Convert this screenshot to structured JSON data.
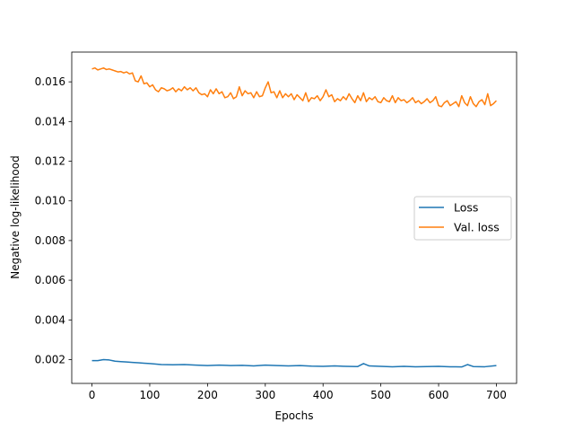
{
  "chart_data": {
    "type": "line",
    "title": "",
    "xlabel": "Epochs",
    "ylabel": "Negative log-likelihood",
    "xlim": [
      -35,
      735
    ],
    "ylim": [
      0.0008,
      0.0175
    ],
    "xticks": [
      0,
      100,
      200,
      300,
      400,
      500,
      600,
      700
    ],
    "xtick_labels": [
      "0",
      "100",
      "200",
      "300",
      "400",
      "500",
      "600",
      "700"
    ],
    "yticks": [
      0.002,
      0.004,
      0.006,
      0.008,
      0.01,
      0.012,
      0.014,
      0.016
    ],
    "ytick_labels": [
      "0.002",
      "0.004",
      "0.006",
      "0.008",
      "0.010",
      "0.012",
      "0.014",
      "0.016"
    ],
    "grid": false,
    "legend_position": "center-right",
    "series": [
      {
        "name": "Loss",
        "color": "#1f77b4",
        "x": [
          0,
          10,
          20,
          30,
          40,
          50,
          60,
          70,
          80,
          90,
          100,
          120,
          140,
          160,
          180,
          200,
          220,
          240,
          260,
          280,
          300,
          320,
          340,
          360,
          380,
          400,
          420,
          440,
          460,
          470,
          480,
          500,
          520,
          540,
          560,
          580,
          600,
          620,
          640,
          650,
          660,
          680,
          700
        ],
        "y": [
          0.00195,
          0.00195,
          0.002,
          0.00198,
          0.00192,
          0.0019,
          0.00188,
          0.00186,
          0.00184,
          0.00182,
          0.0018,
          0.00175,
          0.00174,
          0.00175,
          0.00172,
          0.0017,
          0.00172,
          0.0017,
          0.00171,
          0.00168,
          0.00172,
          0.0017,
          0.00168,
          0.0017,
          0.00167,
          0.00166,
          0.00168,
          0.00166,
          0.00165,
          0.0018,
          0.00168,
          0.00166,
          0.00164,
          0.00166,
          0.00164,
          0.00165,
          0.00166,
          0.00164,
          0.00163,
          0.00175,
          0.00165,
          0.00164,
          0.0017
        ]
      },
      {
        "name": "Val. loss",
        "color": "#ff7f0e",
        "x": [
          0,
          5,
          10,
          15,
          20,
          25,
          30,
          35,
          40,
          45,
          50,
          55,
          60,
          65,
          70,
          75,
          80,
          85,
          90,
          95,
          100,
          105,
          110,
          115,
          120,
          125,
          130,
          135,
          140,
          145,
          150,
          155,
          160,
          165,
          170,
          175,
          180,
          185,
          190,
          195,
          200,
          205,
          210,
          215,
          220,
          225,
          230,
          235,
          240,
          245,
          250,
          255,
          260,
          265,
          270,
          275,
          280,
          285,
          290,
          295,
          300,
          305,
          310,
          315,
          320,
          325,
          330,
          335,
          340,
          345,
          350,
          355,
          360,
          365,
          370,
          375,
          380,
          385,
          390,
          395,
          400,
          405,
          410,
          415,
          420,
          425,
          430,
          435,
          440,
          445,
          450,
          455,
          460,
          465,
          470,
          475,
          480,
          485,
          490,
          495,
          500,
          505,
          510,
          515,
          520,
          525,
          530,
          535,
          540,
          545,
          550,
          555,
          560,
          565,
          570,
          575,
          580,
          585,
          590,
          595,
          600,
          605,
          610,
          615,
          620,
          625,
          630,
          635,
          640,
          645,
          650,
          655,
          660,
          665,
          670,
          675,
          680,
          685,
          690,
          695,
          700
        ],
        "y": [
          0.01665,
          0.0167,
          0.0166,
          0.01665,
          0.0167,
          0.01662,
          0.01665,
          0.0166,
          0.01655,
          0.0165,
          0.01652,
          0.01645,
          0.0165,
          0.0164,
          0.01645,
          0.01605,
          0.016,
          0.0163,
          0.0159,
          0.01595,
          0.01575,
          0.01585,
          0.0156,
          0.0155,
          0.0157,
          0.01565,
          0.01555,
          0.0156,
          0.0157,
          0.0155,
          0.01565,
          0.01555,
          0.01575,
          0.0156,
          0.0157,
          0.01555,
          0.0157,
          0.01545,
          0.01535,
          0.0154,
          0.01525,
          0.0156,
          0.0154,
          0.01565,
          0.0154,
          0.0155,
          0.0152,
          0.01525,
          0.01545,
          0.01515,
          0.01525,
          0.01575,
          0.0153,
          0.01555,
          0.0154,
          0.01545,
          0.0152,
          0.0155,
          0.01525,
          0.0153,
          0.0157,
          0.016,
          0.01545,
          0.0155,
          0.0152,
          0.01555,
          0.0152,
          0.0154,
          0.01525,
          0.0154,
          0.0151,
          0.01535,
          0.0152,
          0.01505,
          0.01545,
          0.015,
          0.0152,
          0.01515,
          0.0153,
          0.01505,
          0.01525,
          0.0156,
          0.01525,
          0.01535,
          0.015,
          0.01515,
          0.01505,
          0.01525,
          0.0151,
          0.0154,
          0.01515,
          0.01495,
          0.0153,
          0.01505,
          0.01545,
          0.015,
          0.0152,
          0.0151,
          0.01525,
          0.015,
          0.01495,
          0.0152,
          0.01505,
          0.015,
          0.0153,
          0.01495,
          0.0152,
          0.01505,
          0.0151,
          0.01495,
          0.01505,
          0.0152,
          0.01495,
          0.01505,
          0.0149,
          0.015,
          0.01515,
          0.01495,
          0.01505,
          0.01525,
          0.0148,
          0.01475,
          0.01495,
          0.01505,
          0.0148,
          0.0149,
          0.015,
          0.01475,
          0.0153,
          0.01495,
          0.0148,
          0.01525,
          0.0149,
          0.01475,
          0.015,
          0.0151,
          0.01485,
          0.0154,
          0.0148,
          0.0149,
          0.01505
        ]
      }
    ]
  }
}
